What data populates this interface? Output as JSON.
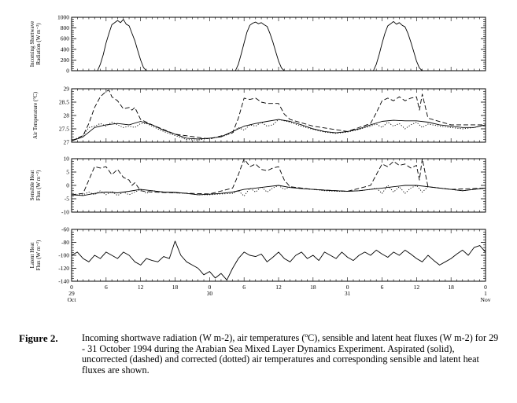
{
  "figure": {
    "caption_label": "Figure 2.",
    "caption_text": "Incoming shortwave radiation (W m-2), air temperatures (ºC), sensible and latent heat fluxes (W m-2) for 29 - 31 October 1994 during the Arabian Sea Mixed Layer Dynamics Experiment. Aspirated (solid), uncorrected (dashed) and corrected (dotted) air temperatures and corresponding sensible and latent heat fluxes are shown."
  },
  "x_axis": {
    "xlim": [
      0,
      72
    ],
    "ticks": [
      {
        "hour": 0,
        "lines": [
          "0",
          "29",
          "Oct"
        ]
      },
      {
        "hour": 6,
        "lines": [
          "6"
        ]
      },
      {
        "hour": 12,
        "lines": [
          "12"
        ]
      },
      {
        "hour": 18,
        "lines": [
          "18"
        ]
      },
      {
        "hour": 24,
        "lines": [
          "0",
          "30"
        ]
      },
      {
        "hour": 30,
        "lines": [
          "6"
        ]
      },
      {
        "hour": 36,
        "lines": [
          "12"
        ]
      },
      {
        "hour": 42,
        "lines": [
          "18"
        ]
      },
      {
        "hour": 48,
        "lines": [
          "0",
          "31"
        ]
      },
      {
        "hour": 54,
        "lines": [
          "6"
        ]
      },
      {
        "hour": 60,
        "lines": [
          "12"
        ]
      },
      {
        "hour": 66,
        "lines": [
          "18"
        ]
      },
      {
        "hour": 72,
        "lines": [
          "0",
          "1",
          "Nov"
        ]
      }
    ]
  },
  "chart_data": [
    {
      "type": "line",
      "ylabel": [
        "Incoming Shortwave",
        "Radiation (W m⁻²)"
      ],
      "ylim": [
        0,
        1000
      ],
      "yticks": [
        0,
        200,
        400,
        600,
        800,
        1000
      ],
      "series": [
        {
          "style": "solid",
          "x": [
            0,
            4.5,
            5,
            5.5,
            6,
            6.5,
            7,
            7.5,
            8,
            8.5,
            9,
            9.5,
            10,
            10.5,
            11,
            11.5,
            12,
            12.5,
            13,
            28.5,
            29,
            29.5,
            30,
            30.5,
            31,
            31.5,
            32,
            32.5,
            33,
            33.5,
            34,
            34.5,
            35,
            35.5,
            36,
            36.5,
            37,
            52.5,
            53,
            53.5,
            54,
            54.5,
            55,
            55.5,
            56,
            56.5,
            57,
            57.5,
            58,
            58.5,
            59,
            59.5,
            60,
            60.5,
            61,
            72
          ],
          "y": [
            0,
            0,
            120,
            300,
            520,
            700,
            860,
            900,
            940,
            900,
            960,
            870,
            840,
            700,
            560,
            380,
            200,
            60,
            0,
            0,
            120,
            310,
            520,
            720,
            850,
            890,
            910,
            880,
            900,
            860,
            830,
            700,
            540,
            360,
            180,
            50,
            0,
            0,
            120,
            300,
            510,
            700,
            840,
            880,
            920,
            870,
            900,
            850,
            820,
            700,
            540,
            360,
            180,
            50,
            0,
            0
          ]
        }
      ]
    },
    {
      "type": "line",
      "ylabel": [
        "Air Temperature (°C)"
      ],
      "ylim": [
        27,
        29
      ],
      "yticks": [
        27.0,
        27.5,
        28.0,
        28.5,
        29.0
      ],
      "series": [
        {
          "style": "solid",
          "x": [
            0,
            2,
            4,
            6,
            8,
            10,
            12,
            14,
            16,
            18,
            20,
            22,
            24,
            26,
            28,
            30,
            32,
            34,
            36,
            38,
            40,
            42,
            44,
            46,
            48,
            50,
            52,
            54,
            56,
            58,
            60,
            62,
            64,
            66,
            68,
            70,
            72
          ],
          "y": [
            27.05,
            27.2,
            27.55,
            27.65,
            27.7,
            27.65,
            27.78,
            27.65,
            27.45,
            27.3,
            27.15,
            27.12,
            27.15,
            27.2,
            27.4,
            27.6,
            27.7,
            27.78,
            27.85,
            27.78,
            27.65,
            27.5,
            27.4,
            27.35,
            27.4,
            27.5,
            27.65,
            27.78,
            27.82,
            27.8,
            27.8,
            27.75,
            27.65,
            27.6,
            27.55,
            27.55,
            27.65
          ]
        },
        {
          "style": "dashed",
          "x": [
            0,
            2,
            3,
            4,
            5,
            6,
            6.5,
            7,
            8,
            9,
            10,
            10.5,
            11,
            12,
            14,
            18,
            24,
            28,
            29,
            30,
            31,
            32,
            33,
            34,
            35,
            36,
            37,
            38,
            42,
            48,
            52,
            53,
            54,
            55,
            56,
            57,
            58,
            59,
            60,
            60.5,
            61,
            62,
            66,
            72
          ],
          "y": [
            27.05,
            27.25,
            27.7,
            28.3,
            28.7,
            28.9,
            28.95,
            28.7,
            28.55,
            28.25,
            28.3,
            28.2,
            28.3,
            27.85,
            27.65,
            27.3,
            27.12,
            27.35,
            27.9,
            28.65,
            28.6,
            28.65,
            28.5,
            28.45,
            28.45,
            28.45,
            28.05,
            27.85,
            27.6,
            27.4,
            27.7,
            28.1,
            28.55,
            28.65,
            28.55,
            28.7,
            28.55,
            28.65,
            28.7,
            28.2,
            28.8,
            27.9,
            27.65,
            27.65
          ]
        },
        {
          "style": "dotted",
          "x": [
            0,
            2,
            3,
            4,
            5,
            6,
            7,
            8,
            9,
            10,
            11,
            12,
            13,
            14,
            16,
            18,
            20,
            22,
            24,
            26,
            28,
            29,
            30,
            31,
            32,
            33,
            34,
            35,
            36,
            37,
            38,
            40,
            42,
            44,
            46,
            48,
            50,
            52,
            53,
            54,
            55,
            56,
            57,
            58,
            59,
            60,
            61,
            62,
            64,
            66,
            68,
            70,
            72
          ],
          "y": [
            27.05,
            27.25,
            27.55,
            27.6,
            27.7,
            27.6,
            27.75,
            27.65,
            27.55,
            27.6,
            27.55,
            27.7,
            27.7,
            27.6,
            27.4,
            27.25,
            27.1,
            27.08,
            27.15,
            27.2,
            27.35,
            27.55,
            27.45,
            27.65,
            27.6,
            27.75,
            27.6,
            27.65,
            27.85,
            27.8,
            27.75,
            27.6,
            27.48,
            27.38,
            27.33,
            27.38,
            27.48,
            27.6,
            27.68,
            27.55,
            27.75,
            27.6,
            27.7,
            27.5,
            27.65,
            27.75,
            27.55,
            27.68,
            27.6,
            27.55,
            27.5,
            27.55,
            27.65
          ]
        }
      ]
    },
    {
      "type": "line",
      "ylabel": [
        "Sensible Heat",
        "Flux (W m⁻²)"
      ],
      "ylim": [
        -10,
        10
      ],
      "yticks": [
        -10,
        -5,
        0,
        5,
        10
      ],
      "series": [
        {
          "style": "solid",
          "x": [
            0,
            2,
            4,
            6,
            8,
            10,
            12,
            14,
            16,
            18,
            20,
            22,
            24,
            26,
            28,
            30,
            32,
            34,
            36,
            38,
            40,
            42,
            44,
            46,
            48,
            50,
            52,
            54,
            56,
            58,
            60,
            62,
            64,
            66,
            68,
            70,
            72
          ],
          "y": [
            -3.5,
            -3.8,
            -3,
            -2.5,
            -2.8,
            -2.2,
            -1.5,
            -2,
            -2.5,
            -2.6,
            -3,
            -3.5,
            -3.3,
            -3,
            -2.5,
            -1.5,
            -1,
            -0.5,
            0,
            -0.8,
            -1.2,
            -1.5,
            -1.8,
            -2,
            -2.2,
            -2,
            -1.5,
            -1,
            -0.5,
            0,
            0,
            -0.5,
            -1,
            -1.5,
            -2,
            -1.5,
            -1
          ]
        },
        {
          "style": "dashed",
          "x": [
            0,
            2,
            3,
            4,
            5,
            6,
            7,
            8,
            9,
            10,
            10.5,
            11,
            12,
            14,
            18,
            24,
            28,
            29,
            30,
            31,
            32,
            33,
            34,
            35,
            36,
            37,
            38,
            42,
            48,
            52,
            53,
            54,
            55,
            56,
            57,
            58,
            59,
            60,
            60.5,
            61,
            62,
            66,
            72
          ],
          "y": [
            -3.5,
            -3,
            2,
            7,
            6.5,
            7,
            4,
            6,
            3,
            2,
            0,
            1,
            -2,
            -2.5,
            -2.8,
            -3.2,
            -1,
            4,
            10,
            7,
            8,
            6,
            5.5,
            6.5,
            7,
            2,
            -0.5,
            -1.5,
            -2.2,
            0,
            4,
            8,
            7,
            9,
            7.5,
            8,
            6.5,
            7.5,
            2,
            10,
            -0.5,
            -1.5,
            -1
          ]
        },
        {
          "style": "dotted",
          "x": [
            0,
            2,
            3,
            4,
            5,
            6,
            7,
            8,
            9,
            10,
            11,
            12,
            13,
            14,
            16,
            18,
            20,
            22,
            24,
            26,
            28,
            29,
            30,
            31,
            32,
            33,
            34,
            35,
            36,
            37,
            38,
            40,
            42,
            44,
            46,
            48,
            50,
            52,
            53,
            54,
            55,
            56,
            57,
            58,
            59,
            60,
            61,
            62,
            64,
            66,
            68,
            70,
            72
          ],
          "y": [
            -3.5,
            -3.5,
            -2.5,
            -3.5,
            -2,
            -3.5,
            -2.2,
            -3.8,
            -2.5,
            -3.5,
            -2.5,
            -1.5,
            -3,
            -2,
            -2.5,
            -2.8,
            -3,
            -3.5,
            -3.5,
            -3.2,
            -3,
            -2,
            -4,
            -1,
            -2.5,
            -0.5,
            -2.5,
            -1,
            0,
            -1.5,
            -0.5,
            -1.2,
            -1.5,
            -2,
            -2.2,
            -2.2,
            -2,
            -1.5,
            -1,
            -3,
            0,
            -2.5,
            -0.5,
            -3,
            -1,
            0,
            -2.5,
            -0.5,
            -1,
            -1.5,
            -2,
            -1.5,
            -1
          ]
        }
      ]
    },
    {
      "type": "line",
      "ylabel": [
        "Latent Heat",
        "Flux (W m⁻²)"
      ],
      "ylim": [
        -140,
        -60
      ],
      "yticks": [
        -140,
        -120,
        -100,
        -80,
        -60
      ],
      "series": [
        {
          "style": "solid",
          "x": [
            0,
            1,
            2,
            3,
            4,
            5,
            6,
            7,
            8,
            9,
            10,
            11,
            12,
            13,
            14,
            15,
            16,
            17,
            18,
            19,
            20,
            21,
            22,
            23,
            24,
            25,
            26,
            27,
            28,
            29,
            30,
            31,
            32,
            33,
            34,
            35,
            36,
            37,
            38,
            39,
            40,
            41,
            42,
            43,
            44,
            45,
            46,
            47,
            48,
            49,
            50,
            51,
            52,
            53,
            54,
            55,
            56,
            57,
            58,
            59,
            60,
            61,
            62,
            63,
            64,
            65,
            66,
            67,
            68,
            69,
            70,
            71,
            72
          ],
          "y": [
            -100,
            -95,
            -105,
            -110,
            -100,
            -105,
            -95,
            -100,
            -105,
            -95,
            -100,
            -110,
            -115,
            -105,
            -108,
            -110,
            -102,
            -105,
            -78,
            -100,
            -110,
            -115,
            -120,
            -130,
            -125,
            -135,
            -128,
            -138,
            -120,
            -105,
            -95,
            -100,
            -102,
            -98,
            -110,
            -103,
            -95,
            -105,
            -110,
            -100,
            -95,
            -105,
            -100,
            -108,
            -95,
            -100,
            -105,
            -95,
            -103,
            -108,
            -100,
            -95,
            -100,
            -92,
            -98,
            -103,
            -95,
            -100,
            -92,
            -98,
            -105,
            -110,
            -100,
            -108,
            -115,
            -110,
            -105,
            -98,
            -92,
            -100,
            -88,
            -85,
            -95
          ]
        }
      ]
    }
  ]
}
